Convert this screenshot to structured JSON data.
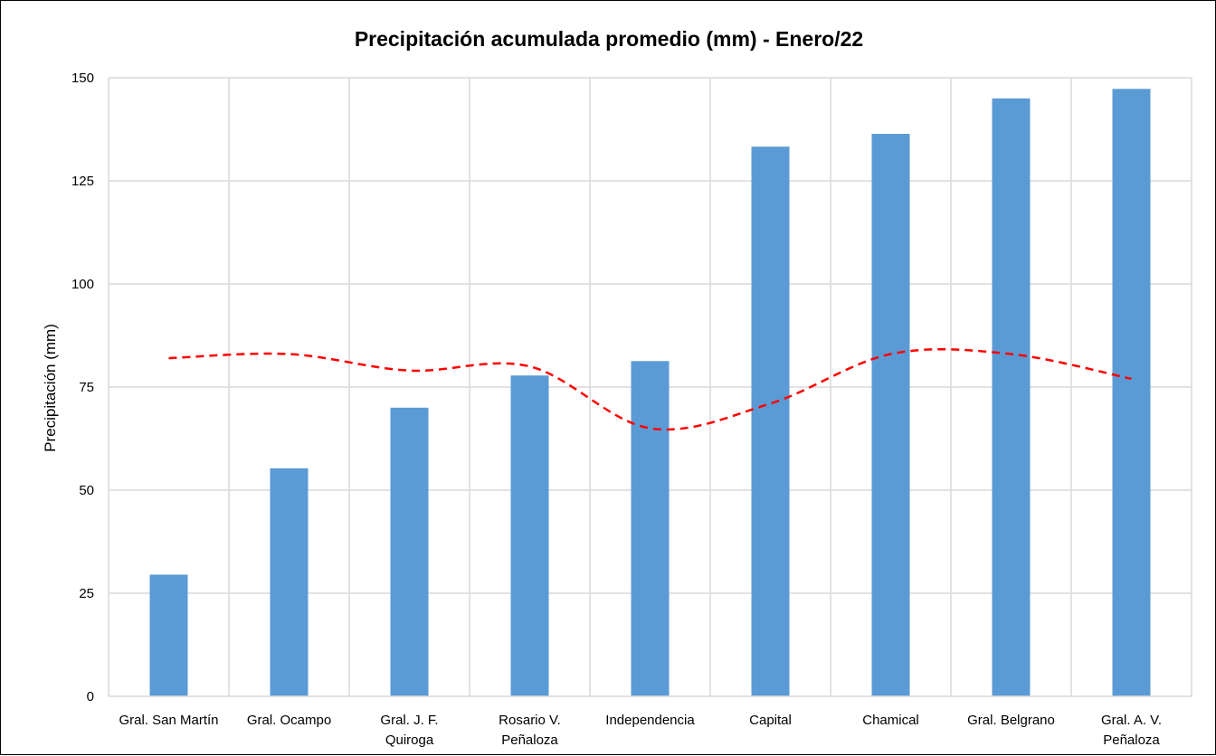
{
  "chart_data": {
    "type": "bar",
    "title": "Precipitación acumulada promedio (mm) - Enero/22",
    "ylabel": "Precipitación (mm)",
    "xlabel": "",
    "ylim": [
      0,
      150
    ],
    "yticks": [
      0,
      25,
      50,
      75,
      100,
      125,
      150
    ],
    "grid": true,
    "categories": [
      [
        "Gral. San Martín"
      ],
      [
        "Gral. Ocampo"
      ],
      [
        "Gral. J. F.",
        "Quiroga"
      ],
      [
        "Rosario V.",
        "Peñaloza"
      ],
      [
        "Independencia"
      ],
      [
        "Capital"
      ],
      [
        "Chamical"
      ],
      [
        "Gral. Belgrano"
      ],
      [
        "Gral. A. V.",
        "Peñaloza"
      ]
    ],
    "series": [
      {
        "type": "bar",
        "color": "#5b9bd5",
        "values": [
          29.5,
          55.3,
          70.0,
          77.8,
          81.3,
          133.3,
          136.4,
          145.0,
          147.3
        ]
      },
      {
        "type": "line",
        "style": "dashed",
        "color": "#ff0000",
        "values": [
          82,
          83,
          79,
          80,
          65,
          71,
          83,
          83,
          77
        ]
      }
    ]
  }
}
